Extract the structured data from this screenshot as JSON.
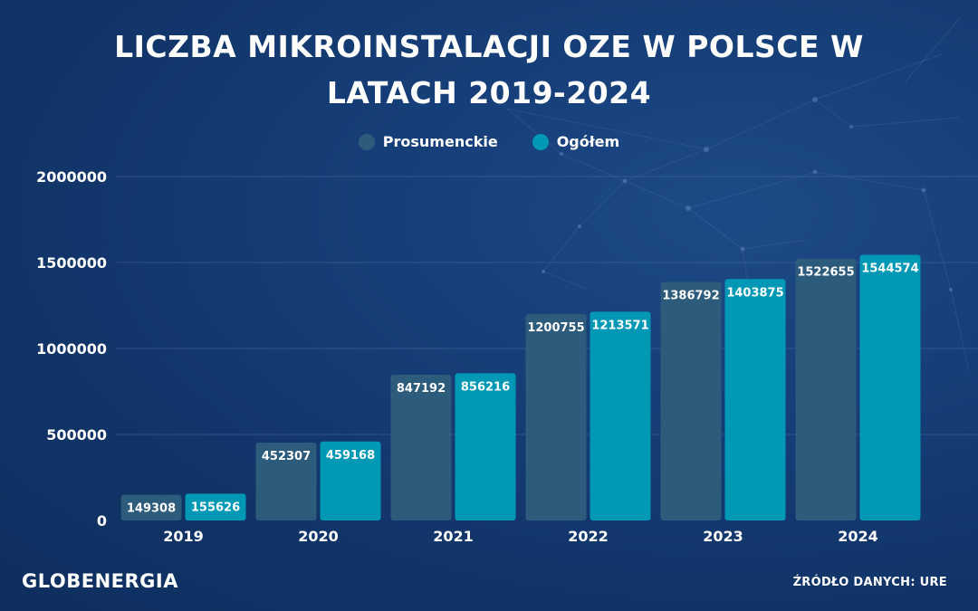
{
  "header": {
    "title": "LICZBA MIKROINSTALACJI OZE W POLSCE W LATACH 2019-2024"
  },
  "footer": {
    "logo": "GLOBENERGIA",
    "source": "ŹRÓDŁO DANYCH: URE"
  },
  "colors": {
    "prosument": "#2d5b7c",
    "ogolem": "#0098b4",
    "background": "#143a70",
    "text": "#ffffff"
  },
  "chart_data": {
    "type": "bar",
    "title": "LICZBA MIKROINSTALACJI OZE W POLSCE W LATACH 2019-2024",
    "xlabel": "",
    "ylabel": "",
    "categories": [
      "2019",
      "2020",
      "2021",
      "2022",
      "2023",
      "2024"
    ],
    "series": [
      {
        "name": "Prosumenckie",
        "values": [
          149308,
          452307,
          847192,
          1200755,
          1386792,
          1522655
        ]
      },
      {
        "name": "Ogółem",
        "values": [
          155626,
          459168,
          856216,
          1213571,
          1403875,
          1544574
        ]
      }
    ],
    "ylim": [
      0,
      2000000
    ],
    "yticks": [
      "0",
      "500000",
      "1000000",
      "1500000",
      "2000000"
    ],
    "legend": "top-center",
    "grid": true,
    "data_labels": true
  }
}
